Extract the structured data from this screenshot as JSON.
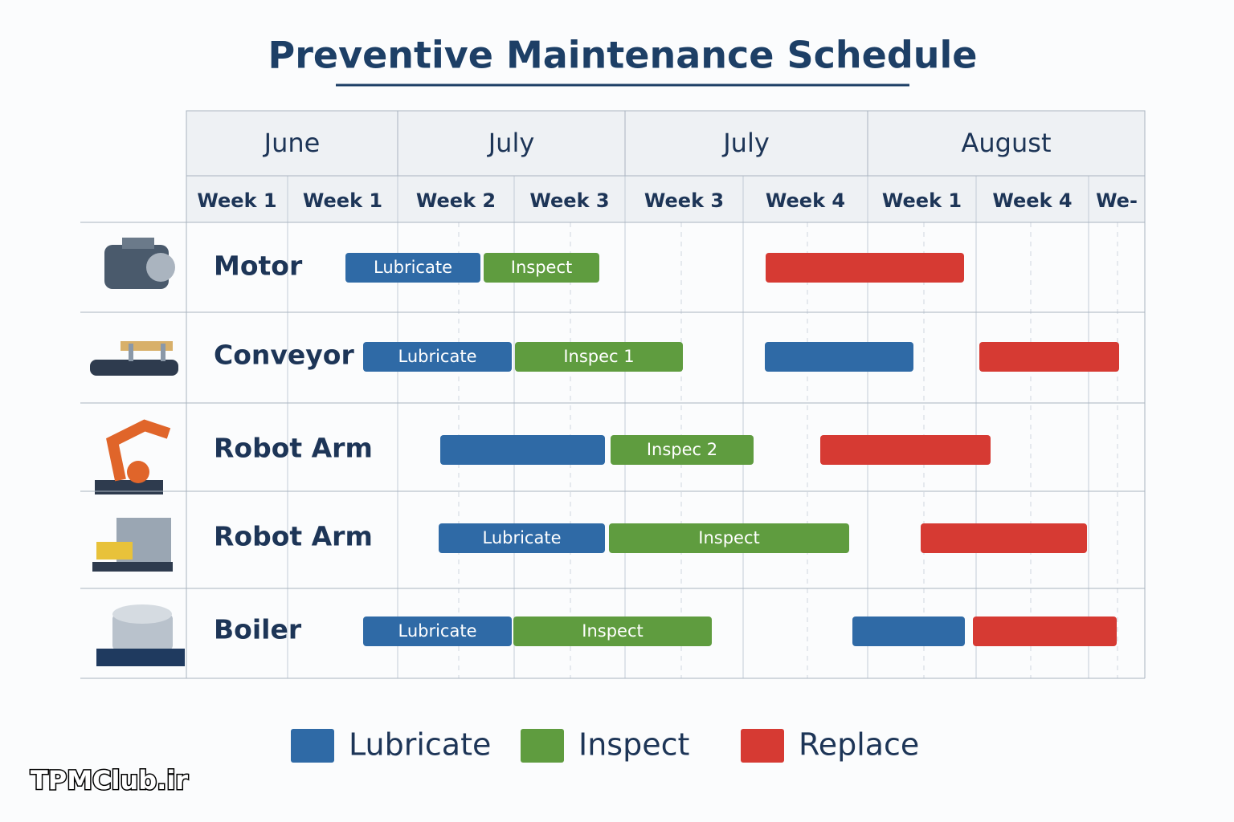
{
  "header": {
    "title": "Preventive Maintenance Schedule"
  },
  "months": [
    "June",
    "July",
    "July",
    "August"
  ],
  "weeks": [
    "Week 1",
    "Week 1",
    "Week 2",
    "Week 3",
    "Week 3",
    "Week 4",
    "Week 1",
    "Week 4",
    "We-"
  ],
  "rows": [
    {
      "label": "Motor",
      "bars": [
        "Lubricate",
        "Inspect"
      ]
    },
    {
      "label": "Conveyor",
      "bars": [
        "Lubricate",
        "Inspec 1"
      ]
    },
    {
      "label": "Robot Arm",
      "bars": [
        "Inspec 2"
      ]
    },
    {
      "label": "Robot Arm",
      "bars": [
        "Lubricate",
        "Inspect"
      ]
    },
    {
      "label": "Boiler",
      "bars": [
        "Lubricate",
        "Inspect"
      ]
    }
  ],
  "legend": [
    {
      "label": "Lubricate",
      "color": "#2f6aa6"
    },
    {
      "label": "Inspect",
      "color": "#5f9c3f"
    },
    {
      "label": "Replace",
      "color": "#d63a33"
    }
  ],
  "watermark": "TPMClub.ir"
}
